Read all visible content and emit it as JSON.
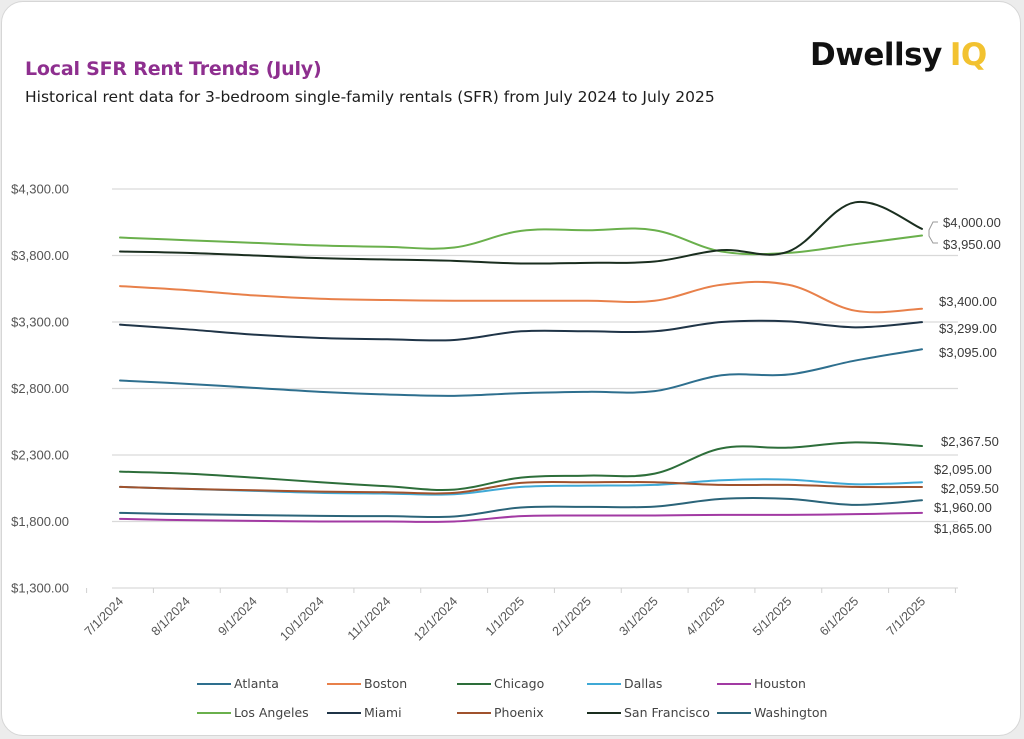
{
  "header": {
    "title": "Local SFR Rent Trends (July)",
    "subtitle": "Historical rent data for 3-bedroom single-family rentals (SFR) from July 2024 to July 2025",
    "logo_text": "Dwellsy",
    "logo_suffix": "IQ",
    "logo_suffix_color": "#f2c230",
    "title_color": "#8e2f8f"
  },
  "chart_data": {
    "type": "line",
    "title": "Local SFR Rent Trends (July)",
    "subtitle": "Historical rent data for 3-bedroom single-family rentals (SFR) from July 2024 to July 2025",
    "xlabel": "",
    "ylabel": "",
    "x": [
      "7/1/2024",
      "8/1/2024",
      "9/1/2024",
      "10/1/2024",
      "11/1/2024",
      "12/1/2024",
      "1/1/2025",
      "2/1/2025",
      "3/1/2025",
      "4/1/2025",
      "5/1/2025",
      "6/1/2025",
      "7/1/2025"
    ],
    "ylim": [
      1300,
      4300
    ],
    "yticks": [
      1300,
      1800,
      2300,
      2800,
      3300,
      3800,
      4300
    ],
    "ytick_labels": [
      "$1,300.00",
      "$1,800.00",
      "$2,300.00",
      "$2,800.00",
      "$3,300.00",
      "$3,800.00",
      "$4,300.00"
    ],
    "grid": "horizontal",
    "smoothed": true,
    "legend_position": "bottom",
    "series": [
      {
        "name": "Atlanta",
        "color": "#2e6f8e",
        "values": [
          2860,
          2835,
          2805,
          2775,
          2755,
          2745,
          2765,
          2775,
          2780,
          2900,
          2905,
          3010,
          3095
        ],
        "end_label": "$3,095.00"
      },
      {
        "name": "Boston",
        "color": "#e8804a",
        "values": [
          3570,
          3540,
          3500,
          3475,
          3465,
          3460,
          3460,
          3460,
          3460,
          3580,
          3580,
          3385,
          3400
        ],
        "end_label": "$3,400.00"
      },
      {
        "name": "Chicago",
        "color": "#2d6e3a",
        "values": [
          2175,
          2160,
          2130,
          2095,
          2065,
          2040,
          2130,
          2145,
          2160,
          2350,
          2355,
          2395,
          2367.5
        ],
        "end_label": "$2,367.50"
      },
      {
        "name": "Dallas",
        "color": "#3fa9d6",
        "values": [
          2060,
          2045,
          2030,
          2015,
          2010,
          2005,
          2060,
          2070,
          2075,
          2110,
          2115,
          2080,
          2095
        ],
        "end_label": "$2,095.00"
      },
      {
        "name": "Houston",
        "color": "#a23aa3",
        "values": [
          1820,
          1810,
          1805,
          1800,
          1800,
          1800,
          1840,
          1845,
          1845,
          1850,
          1850,
          1855,
          1865
        ],
        "end_label": "$1,865.00"
      },
      {
        "name": "Los Angeles",
        "color": "#6ab04c",
        "values": [
          3935,
          3915,
          3895,
          3875,
          3865,
          3860,
          3985,
          3990,
          3990,
          3830,
          3820,
          3885,
          3950
        ],
        "end_label": "$3,950.00"
      },
      {
        "name": "Miami",
        "color": "#1f3447",
        "values": [
          3280,
          3245,
          3205,
          3180,
          3170,
          3165,
          3230,
          3230,
          3230,
          3300,
          3305,
          3260,
          3299
        ],
        "end_label": "$3,299.00"
      },
      {
        "name": "Phoenix",
        "color": "#a0522d",
        "values": [
          2060,
          2045,
          2035,
          2025,
          2020,
          2015,
          2090,
          2095,
          2095,
          2075,
          2075,
          2060,
          2059.5
        ],
        "end_label": "$2,059.50"
      },
      {
        "name": "San Francisco",
        "color": "#1a2e1f",
        "values": [
          3830,
          3820,
          3800,
          3780,
          3770,
          3760,
          3740,
          3745,
          3755,
          3840,
          3830,
          4200,
          4000
        ],
        "end_label": "$4,000.00"
      },
      {
        "name": "Washington",
        "color": "#2b6479",
        "values": [
          1865,
          1855,
          1848,
          1842,
          1840,
          1838,
          1905,
          1910,
          1912,
          1970,
          1970,
          1925,
          1960
        ],
        "end_label": "$1,960.00"
      }
    ]
  }
}
